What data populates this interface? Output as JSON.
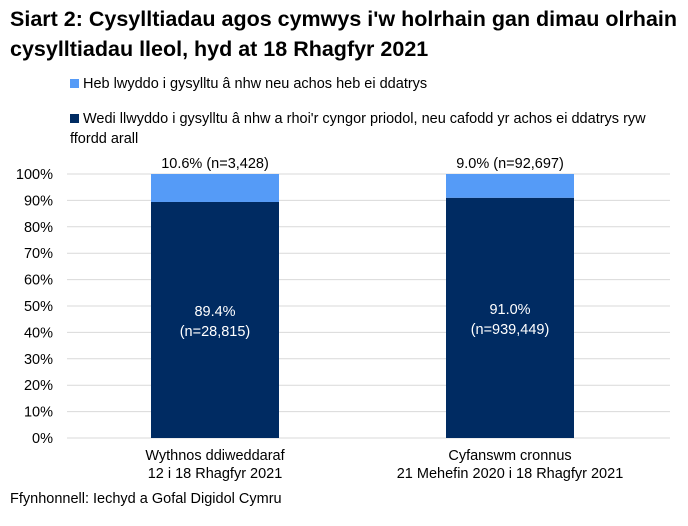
{
  "chart_data": {
    "type": "bar",
    "stacked": true,
    "title": "Siart 2: Cysylltiadau agos cymwys i'w holrhain gan dimau olrhain cysylltiadau lleol, hyd at 18 Rhagfyr 2021",
    "categories": [
      [
        "Wythnos ddiweddaraf",
        "12 i 18 Rhagfyr 2021"
      ],
      [
        "Cyfanswm cronnus",
        "21 Mehefin 2020 i 18 Rhagfyr 2021"
      ]
    ],
    "series": [
      {
        "name": "Wedi llwyddo i gysylltu â nhw a rhoi'r cyngor priodol, neu cafodd yr achos ei ddatrys ryw ffordd arall",
        "color": "#002b62",
        "values": [
          89.4,
          91.0
        ],
        "labels": [
          [
            "89.4%",
            "(n=28,815)"
          ],
          [
            "91.0%",
            "(n=939,449)"
          ]
        ]
      },
      {
        "name": "Heb lwyddo i gysylltu â nhw neu achos heb ei ddatrys",
        "color": "#559bf7",
        "values": [
          10.6,
          9.0
        ],
        "labels": [
          "10.6% (n=3,428)",
          "9.0% (n=92,697)"
        ]
      }
    ],
    "yticks": [
      "0%",
      "10%",
      "20%",
      "30%",
      "40%",
      "50%",
      "60%",
      "70%",
      "80%",
      "90%",
      "100%"
    ],
    "ylim": [
      0,
      100
    ],
    "grid": true,
    "legend_position": "top"
  },
  "source": "Ffynhonnell: Iechyd a Gofal Digidol Cymru"
}
